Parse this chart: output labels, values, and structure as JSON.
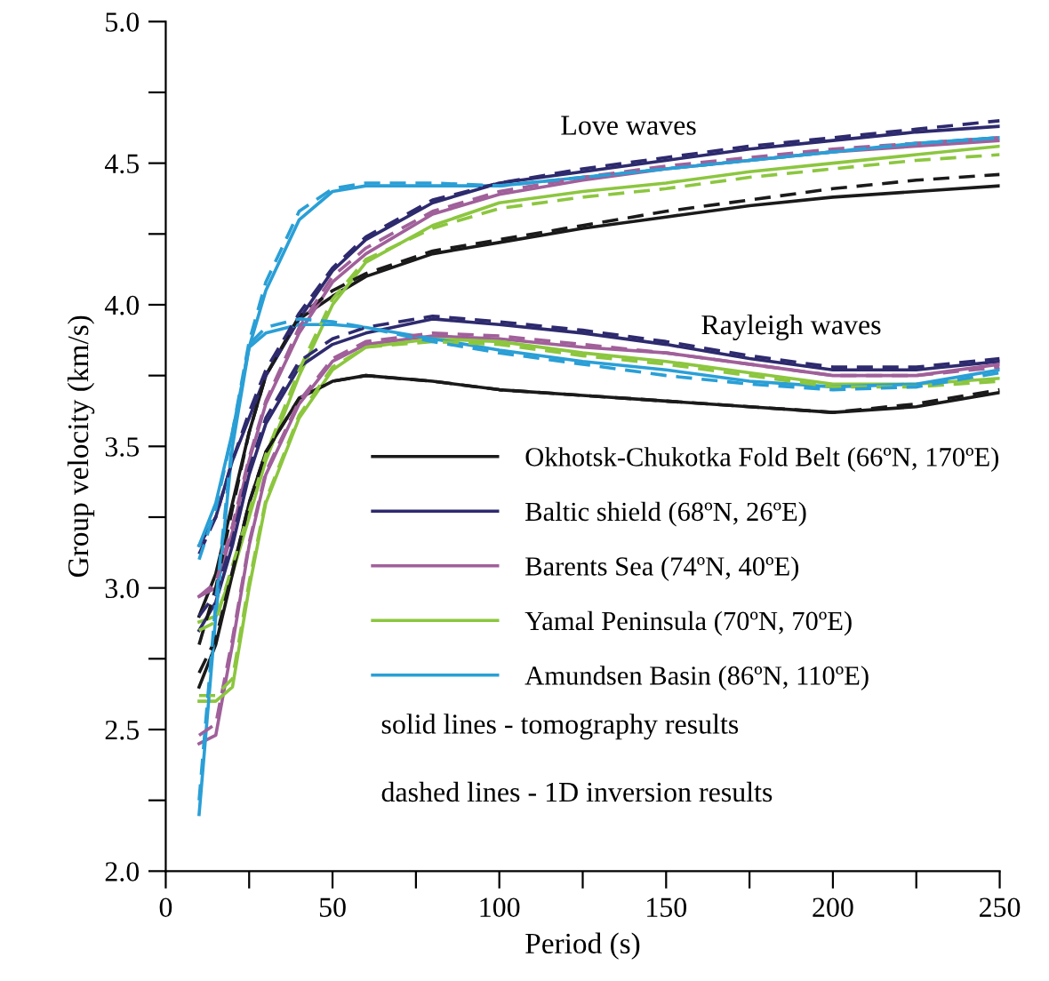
{
  "chart_data": {
    "type": "line",
    "xlabel": "Period (s)",
    "ylabel": "Group velocity (km/s)",
    "x": [
      10,
      15,
      20,
      25,
      30,
      40,
      50,
      60,
      80,
      100,
      125,
      150,
      175,
      200,
      225,
      250
    ],
    "xlim": [
      0,
      250
    ],
    "ylim": [
      2.0,
      5.0
    ],
    "xticks": [
      0,
      {
        "value": 25,
        "label": null
      },
      50,
      {
        "value": 75,
        "label": null
      },
      100,
      {
        "value": 125,
        "label": null
      },
      150,
      {
        "value": 175,
        "label": null
      },
      200,
      {
        "value": 225,
        "label": null
      },
      250
    ],
    "yticks": [
      {
        "value": 2.0,
        "label": "2.0"
      },
      {
        "value": 2.25,
        "label": null
      },
      2.5,
      {
        "value": 2.75,
        "label": null
      },
      {
        "value": 3.0,
        "label": "3.0"
      },
      {
        "value": 3.25,
        "label": null
      },
      3.5,
      {
        "value": 3.75,
        "label": null
      },
      {
        "value": 4.0,
        "label": "4.0"
      },
      {
        "value": 4.25,
        "label": null
      },
      4.5,
      {
        "value": 4.75,
        "label": null
      },
      {
        "value": 5.0,
        "label": "5.0"
      }
    ],
    "grid": false,
    "legend": "bottom right",
    "annotations": [
      "Love waves",
      "Rayleigh waves",
      "solid lines - tomography results",
      "dashed lines - 1D inversion results"
    ],
    "series": [
      {
        "name": "Okhotsk-Chukotka Fold Belt (66ºN, 170ºE)",
        "color": "#1a1a1a",
        "line_style": "solid",
        "values": [
          2.9,
          3.05,
          3.3,
          3.55,
          3.75,
          3.95,
          4.03,
          4.1,
          4.18,
          4.22,
          4.27,
          4.31,
          4.35,
          4.38,
          4.4,
          4.42
        ]
      },
      {
        "name": "Baltic shield (68ºN, 26ºE)",
        "color": "#2e2a6e",
        "line_style": "solid",
        "values": [
          3.15,
          3.25,
          3.45,
          3.6,
          3.75,
          3.95,
          4.12,
          4.23,
          4.36,
          4.43,
          4.47,
          4.51,
          4.55,
          4.58,
          4.61,
          4.63
        ]
      },
      {
        "name": "Barents Sea (74ºN, 40ºE)",
        "color": "#a0609a",
        "line_style": "solid",
        "values": [
          2.97,
          3.0,
          3.2,
          3.45,
          3.65,
          3.9,
          4.08,
          4.18,
          4.32,
          4.39,
          4.44,
          4.48,
          4.51,
          4.54,
          4.56,
          4.58
        ]
      },
      {
        "name": "Yamal Peninsula (70ºN, 70ºE)",
        "color": "#8cc63f",
        "line_style": "solid",
        "values": [
          2.88,
          2.9,
          3.05,
          3.25,
          3.45,
          3.75,
          4.0,
          4.15,
          4.28,
          4.36,
          4.4,
          4.43,
          4.47,
          4.5,
          4.53,
          4.56
        ]
      },
      {
        "name": "Amundsen Basin (86ºN, 110ºE)",
        "color": "#2a9fd6",
        "line_style": "solid",
        "values": [
          3.15,
          3.3,
          3.55,
          3.85,
          4.05,
          4.3,
          4.4,
          4.42,
          4.42,
          4.42,
          4.45,
          4.48,
          4.51,
          4.54,
          4.57,
          4.59
        ]
      },
      {
        "color": "#1a1a1a",
        "line_style": "solid",
        "values": [
          2.65,
          2.8,
          3.05,
          3.3,
          3.48,
          3.67,
          3.73,
          3.75,
          3.73,
          3.7,
          3.68,
          3.66,
          3.64,
          3.62,
          3.64,
          3.69
        ]
      },
      {
        "color": "#2e2a6e",
        "line_style": "solid",
        "values": [
          2.85,
          2.95,
          3.15,
          3.4,
          3.58,
          3.78,
          3.86,
          3.9,
          3.95,
          3.93,
          3.9,
          3.86,
          3.81,
          3.77,
          3.77,
          3.8
        ]
      },
      {
        "color": "#a0609a",
        "line_style": "solid",
        "values": [
          2.45,
          2.48,
          2.8,
          3.15,
          3.4,
          3.65,
          3.8,
          3.86,
          3.89,
          3.88,
          3.85,
          3.83,
          3.79,
          3.75,
          3.75,
          3.79
        ]
      },
      {
        "color": "#8cc63f",
        "line_style": "solid",
        "values": [
          2.6,
          2.6,
          2.65,
          3.0,
          3.3,
          3.6,
          3.77,
          3.85,
          3.88,
          3.87,
          3.83,
          3.8,
          3.76,
          3.72,
          3.72,
          3.74
        ]
      },
      {
        "color": "#2a9fd6",
        "line_style": "solid",
        "values": [
          2.2,
          2.9,
          3.5,
          3.85,
          3.9,
          3.93,
          3.93,
          3.92,
          3.88,
          3.84,
          3.8,
          3.77,
          3.73,
          3.71,
          3.72,
          3.77
        ]
      },
      {
        "color": "#1a1a1a",
        "line_style": "dashed",
        "values": [
          2.8,
          3.0,
          3.28,
          3.55,
          3.75,
          3.96,
          4.05,
          4.11,
          4.19,
          4.23,
          4.28,
          4.33,
          4.37,
          4.41,
          4.44,
          4.46
        ]
      },
      {
        "color": "#2e2a6e",
        "line_style": "dashed",
        "values": [
          3.12,
          3.25,
          3.45,
          3.62,
          3.77,
          3.97,
          4.13,
          4.24,
          4.37,
          4.43,
          4.48,
          4.52,
          4.56,
          4.59,
          4.62,
          4.65
        ]
      },
      {
        "color": "#a0609a",
        "line_style": "dashed",
        "values": [
          2.97,
          3.02,
          3.22,
          3.46,
          3.66,
          3.92,
          4.1,
          4.2,
          4.33,
          4.4,
          4.45,
          4.49,
          4.52,
          4.55,
          4.57,
          4.59
        ]
      },
      {
        "color": "#8cc63f",
        "line_style": "dashed",
        "values": [
          2.85,
          2.88,
          3.08,
          3.27,
          3.47,
          3.77,
          4.02,
          4.16,
          4.27,
          4.34,
          4.38,
          4.41,
          4.45,
          4.48,
          4.51,
          4.53
        ]
      },
      {
        "color": "#2a9fd6",
        "line_style": "dashed",
        "values": [
          3.1,
          3.28,
          3.55,
          3.87,
          4.08,
          4.33,
          4.41,
          4.43,
          4.43,
          4.42,
          4.45,
          4.48,
          4.51,
          4.54,
          4.57,
          4.59
        ]
      },
      {
        "color": "#1a1a1a",
        "line_style": "dashed",
        "values": [
          2.7,
          2.82,
          3.06,
          3.3,
          3.48,
          3.67,
          3.73,
          3.75,
          3.73,
          3.7,
          3.68,
          3.66,
          3.64,
          3.62,
          3.65,
          3.7
        ]
      },
      {
        "color": "#2e2a6e",
        "line_style": "dashed",
        "values": [
          2.9,
          2.98,
          3.17,
          3.42,
          3.6,
          3.8,
          3.88,
          3.92,
          3.96,
          3.94,
          3.91,
          3.87,
          3.82,
          3.78,
          3.78,
          3.81
        ]
      },
      {
        "color": "#a0609a",
        "line_style": "dashed",
        "values": [
          2.48,
          2.52,
          2.82,
          3.16,
          3.41,
          3.66,
          3.81,
          3.87,
          3.9,
          3.89,
          3.86,
          3.83,
          3.79,
          3.75,
          3.75,
          3.78
        ]
      },
      {
        "color": "#8cc63f",
        "line_style": "dashed",
        "values": [
          2.62,
          2.62,
          2.68,
          3.02,
          3.31,
          3.61,
          3.78,
          3.85,
          3.87,
          3.86,
          3.82,
          3.79,
          3.75,
          3.71,
          3.71,
          3.73
        ]
      },
      {
        "color": "#2a9fd6",
        "line_style": "dashed",
        "values": [
          2.25,
          2.95,
          3.52,
          3.86,
          3.92,
          3.95,
          3.94,
          3.92,
          3.87,
          3.83,
          3.79,
          3.75,
          3.72,
          3.7,
          3.71,
          3.76
        ]
      }
    ]
  }
}
